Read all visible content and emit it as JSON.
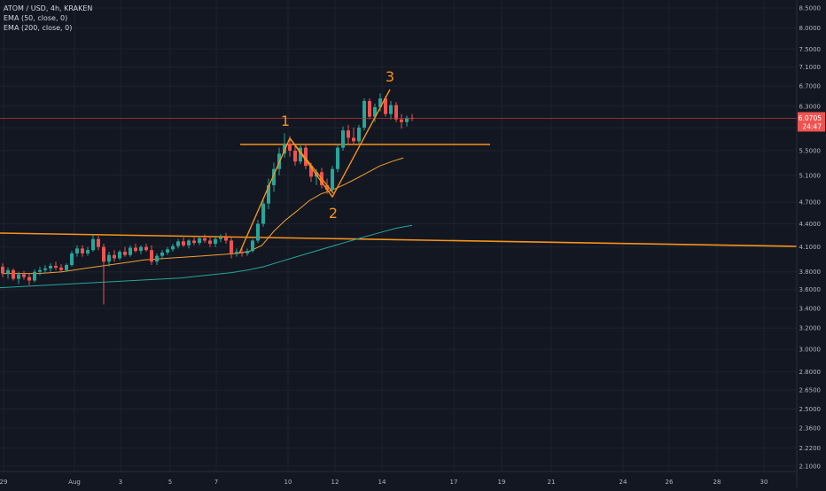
{
  "header": {
    "symbol_line": "ATOM / USD, 4h, KRAKEN",
    "indicator_1": "EMA (50, close, 0)",
    "indicator_2": "EMA (200, close, 0)"
  },
  "price_tag": {
    "value": "6.0705",
    "countdown": "24:47"
  },
  "colors": {
    "background": "#131722",
    "grid": "#1e222d",
    "up": "#26a69a",
    "down": "#ef5350",
    "ema50": "#f0a030",
    "ema200": "#26a69a",
    "drawing": "#f7931a",
    "price_line": "#c0392b"
  },
  "chart_data": {
    "type": "candlestick",
    "timeframe": "4h",
    "x_ticks": [
      "29",
      "Aug",
      "3",
      "5",
      "7",
      "10",
      "12",
      "14",
      "17",
      "19",
      "21",
      "24",
      "26",
      "28",
      "30"
    ],
    "y_ticks": [
      "8.5000",
      "8.0000",
      "7.5000",
      "7.1000",
      "6.7000",
      "6.3000",
      "5.9000",
      "5.5000",
      "5.1000",
      "4.7000",
      "4.4000",
      "4.1000",
      "3.8000",
      "3.6000",
      "3.4000",
      "3.2000",
      "3.0000",
      "2.8000",
      "2.6500",
      "2.5000",
      "2.3600",
      "2.2200",
      "2.1000"
    ],
    "y_scale": "log",
    "y_range": [
      2.05,
      8.8
    ],
    "x_range_days": [
      "Jul 29",
      "Aug 31"
    ],
    "last_price": 6.0705,
    "candles_ohlc": [
      [
        3.86,
        3.9,
        3.74,
        3.78
      ],
      [
        3.78,
        3.85,
        3.72,
        3.82
      ],
      [
        3.82,
        3.84,
        3.7,
        3.72
      ],
      [
        3.72,
        3.8,
        3.66,
        3.77
      ],
      [
        3.77,
        3.81,
        3.71,
        3.74
      ],
      [
        3.74,
        3.78,
        3.65,
        3.7
      ],
      [
        3.7,
        3.83,
        3.68,
        3.8
      ],
      [
        3.8,
        3.86,
        3.76,
        3.82
      ],
      [
        3.82,
        3.88,
        3.78,
        3.84
      ],
      [
        3.84,
        3.9,
        3.8,
        3.87
      ],
      [
        3.87,
        3.92,
        3.82,
        3.85
      ],
      [
        3.85,
        3.89,
        3.79,
        3.82
      ],
      [
        3.82,
        3.9,
        3.8,
        3.88
      ],
      [
        3.88,
        4.05,
        3.86,
        4.02
      ],
      [
        4.02,
        4.12,
        3.98,
        4.08
      ],
      [
        4.08,
        4.12,
        3.98,
        4.02
      ],
      [
        4.02,
        4.1,
        3.99,
        4.06
      ],
      [
        4.06,
        4.26,
        4.04,
        4.2
      ],
      [
        4.2,
        4.24,
        4.06,
        4.1
      ],
      [
        4.1,
        4.14,
        3.44,
        3.92
      ],
      [
        3.92,
        4.04,
        3.86,
        4.0
      ],
      [
        4.0,
        4.06,
        3.92,
        3.96
      ],
      [
        3.96,
        4.06,
        3.94,
        4.04
      ],
      [
        4.04,
        4.1,
        3.98,
        4.0
      ],
      [
        4.0,
        4.12,
        3.98,
        4.09
      ],
      [
        4.09,
        4.14,
        4.03,
        4.05
      ],
      [
        4.05,
        4.12,
        4.01,
        4.1
      ],
      [
        4.1,
        4.14,
        4.04,
        4.06
      ],
      [
        4.06,
        4.12,
        3.88,
        3.92
      ],
      [
        3.92,
        4.02,
        3.88,
        3.99
      ],
      [
        3.99,
        4.06,
        3.96,
        4.03
      ],
      [
        4.03,
        4.1,
        4.0,
        4.07
      ],
      [
        4.07,
        4.14,
        4.04,
        4.11
      ],
      [
        4.11,
        4.2,
        4.08,
        4.17
      ],
      [
        4.17,
        4.22,
        4.1,
        4.12
      ],
      [
        4.12,
        4.2,
        4.08,
        4.18
      ],
      [
        4.18,
        4.22,
        4.12,
        4.15
      ],
      [
        4.15,
        4.24,
        4.12,
        4.21
      ],
      [
        4.21,
        4.26,
        4.15,
        4.18
      ],
      [
        4.18,
        4.24,
        4.1,
        4.14
      ],
      [
        4.14,
        4.22,
        4.1,
        4.2
      ],
      [
        4.2,
        4.26,
        4.16,
        4.22
      ],
      [
        4.22,
        4.28,
        4.14,
        4.18
      ],
      [
        4.18,
        4.22,
        3.96,
        4.02
      ],
      [
        4.02,
        4.08,
        3.98,
        4.04
      ],
      [
        4.04,
        4.1,
        3.98,
        4.02
      ],
      [
        4.02,
        4.08,
        3.99,
        4.05
      ],
      [
        4.05,
        4.2,
        4.03,
        4.18
      ],
      [
        4.18,
        4.45,
        4.15,
        4.4
      ],
      [
        4.4,
        4.75,
        4.36,
        4.68
      ],
      [
        4.68,
        5.05,
        4.6,
        4.95
      ],
      [
        4.95,
        5.3,
        4.85,
        5.2
      ],
      [
        5.2,
        5.55,
        5.1,
        5.45
      ],
      [
        5.45,
        5.8,
        5.38,
        5.62
      ],
      [
        5.62,
        5.75,
        5.4,
        5.5
      ],
      [
        5.5,
        5.62,
        5.25,
        5.32
      ],
      [
        5.32,
        5.6,
        5.28,
        5.55
      ],
      [
        5.55,
        5.62,
        5.2,
        5.25
      ],
      [
        5.25,
        5.3,
        5.0,
        5.08
      ],
      [
        5.08,
        5.2,
        4.95,
        5.15
      ],
      [
        5.15,
        5.22,
        4.9,
        4.95
      ],
      [
        4.95,
        5.05,
        4.82,
        4.88
      ],
      [
        4.88,
        5.25,
        4.86,
        5.2
      ],
      [
        5.2,
        5.62,
        5.15,
        5.55
      ],
      [
        5.55,
        5.92,
        5.5,
        5.85
      ],
      [
        5.85,
        5.95,
        5.6,
        5.72
      ],
      [
        5.72,
        5.9,
        5.6,
        5.66
      ],
      [
        5.66,
        5.95,
        5.62,
        5.9
      ],
      [
        5.9,
        6.45,
        5.85,
        6.4
      ],
      [
        6.4,
        6.45,
        6.05,
        6.1
      ],
      [
        6.1,
        6.35,
        6.0,
        6.28
      ],
      [
        6.28,
        6.55,
        6.2,
        6.45
      ],
      [
        6.45,
        6.5,
        6.1,
        6.15
      ],
      [
        6.15,
        6.4,
        6.05,
        6.32
      ],
      [
        6.32,
        6.38,
        6.0,
        6.05
      ],
      [
        6.05,
        6.15,
        5.88,
        6.0
      ],
      [
        6.0,
        6.12,
        5.92,
        6.08
      ],
      [
        6.08,
        6.15,
        6.02,
        6.07
      ]
    ],
    "series": [
      {
        "name": "EMA (50, close, 0)",
        "values": [
          3.78,
          3.78,
          3.78,
          3.78,
          3.79,
          3.8,
          3.82,
          3.84,
          3.86,
          3.88,
          3.9,
          3.92,
          3.94,
          3.95,
          3.96,
          3.97,
          3.98,
          3.99,
          4.0,
          4.01,
          4.02,
          4.05,
          4.12,
          4.3,
          4.45,
          4.58,
          4.72,
          4.82,
          4.88,
          4.96,
          5.05,
          5.15,
          5.25,
          5.32,
          5.38
        ]
      },
      {
        "name": "EMA (200, close, 0)",
        "values": [
          3.62,
          3.63,
          3.64,
          3.65,
          3.66,
          3.67,
          3.68,
          3.69,
          3.7,
          3.71,
          3.72,
          3.73,
          3.75,
          3.77,
          3.79,
          3.82,
          3.86,
          3.92,
          3.98,
          4.04,
          4.1,
          4.16,
          4.22,
          4.28,
          4.34,
          4.38
        ]
      }
    ],
    "annotations": [
      "1",
      "2",
      "3"
    ]
  }
}
